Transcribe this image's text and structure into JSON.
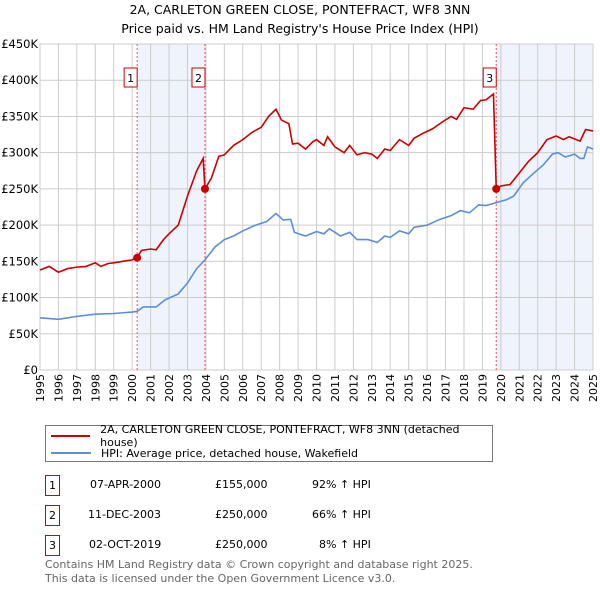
{
  "chart_data": {
    "type": "line",
    "title": "2A, CARLETON GREEN CLOSE, PONTEFRACT, WF8 3NN",
    "subtitle": "Price paid vs. HM Land Registry's House Price Index (HPI)",
    "xlim": [
      1995,
      2025
    ],
    "ylim": [
      0,
      450000
    ],
    "y_ticks": [
      {
        "v": 0,
        "label": "£0"
      },
      {
        "v": 50000,
        "label": "£50K"
      },
      {
        "v": 100000,
        "label": "£100K"
      },
      {
        "v": 150000,
        "label": "£150K"
      },
      {
        "v": 200000,
        "label": "£200K"
      },
      {
        "v": 250000,
        "label": "£250K"
      },
      {
        "v": 300000,
        "label": "£300K"
      },
      {
        "v": 350000,
        "label": "£350K"
      },
      {
        "v": 400000,
        "label": "£400K"
      },
      {
        "v": 450000,
        "label": "£450K"
      }
    ],
    "x_ticks": [
      "1995",
      "1996",
      "1997",
      "1998",
      "1999",
      "2000",
      "2001",
      "2002",
      "2003",
      "2004",
      "2005",
      "2006",
      "2007",
      "2008",
      "2009",
      "2010",
      "2011",
      "2012",
      "2013",
      "2014",
      "2015",
      "2016",
      "2017",
      "2018",
      "2019",
      "2020",
      "2021",
      "2022",
      "2023",
      "2024",
      "2025"
    ],
    "grid": true,
    "shaded_ranges": [
      [
        2000.27,
        2003.95
      ],
      [
        2019.75,
        2025
      ]
    ],
    "series": [
      {
        "name": "2A, CARLETON GREEN CLOSE, PONTEFRACT, WF8 3NN (detached house)",
        "color": "#cc0000",
        "x": [
          1995,
          1995.5,
          1996,
          1996.5,
          1997,
          1997.5,
          1998,
          1998.3,
          1998.7,
          1999,
          1999.5,
          2000,
          2000.27,
          2000.5,
          2001,
          2001.3,
          2001.7,
          2002,
          2002.5,
          2003,
          2003.5,
          2003.85,
          2003.95,
          2004.3,
          2004.7,
          2005,
          2005.5,
          2006,
          2006.5,
          2007,
          2007.4,
          2007.8,
          2008.1,
          2008.5,
          2008.7,
          2009,
          2009.4,
          2009.8,
          2010,
          2010.4,
          2010.6,
          2011,
          2011.5,
          2011.8,
          2012.2,
          2012.6,
          2013,
          2013.3,
          2013.7,
          2014,
          2014.5,
          2015,
          2015.3,
          2015.8,
          2016.3,
          2016.8,
          2017.3,
          2017.6,
          2018,
          2018.5,
          2018.9,
          2019.2,
          2019.6,
          2019.75,
          2020,
          2020.5,
          2021,
          2021.5,
          2022,
          2022.5,
          2023,
          2023.4,
          2023.7,
          2024.3,
          2024.6,
          2025
        ],
        "y": [
          138,
          143,
          135,
          140,
          142,
          143,
          148,
          143,
          147,
          148,
          150,
          152,
          155,
          165,
          167,
          166,
          180,
          188,
          200,
          240,
          275,
          292,
          250,
          265,
          295,
          297,
          310,
          318,
          328,
          335,
          350,
          360,
          345,
          340,
          312,
          313,
          305,
          315,
          318,
          310,
          322,
          308,
          300,
          310,
          297,
          300,
          298,
          292,
          305,
          303,
          318,
          310,
          320,
          327,
          333,
          342,
          350,
          346,
          362,
          360,
          372,
          373,
          381,
          250,
          254,
          256,
          272,
          288,
          300,
          318,
          323,
          318,
          322,
          316,
          332,
          330
        ]
      },
      {
        "name": "HPI: Average price, detached house, Wakefield",
        "color": "#5b8fd4",
        "x": [
          1995,
          1996,
          1997,
          1998,
          1999,
          2000,
          2000.27,
          2000.6,
          2001.3,
          2001.8,
          2002.5,
          2003,
          2003.5,
          2003.95,
          2004.5,
          2005,
          2005.5,
          2006,
          2006.7,
          2007.3,
          2007.8,
          2008.2,
          2008.6,
          2008.8,
          2009.4,
          2010,
          2010.4,
          2010.7,
          2011.3,
          2011.8,
          2012.2,
          2012.8,
          2013.3,
          2013.7,
          2014,
          2014.5,
          2015,
          2015.3,
          2016,
          2016.7,
          2017.3,
          2017.8,
          2018.3,
          2018.8,
          2019.2,
          2019.75,
          2020.3,
          2020.7,
          2021.2,
          2021.8,
          2022.3,
          2022.8,
          2023.1,
          2023.5,
          2024,
          2024.3,
          2024.5,
          2024.7,
          2025
        ],
        "y": [
          72,
          70,
          74,
          77,
          78,
          80,
          81,
          87,
          87,
          97,
          105,
          120,
          140,
          152,
          170,
          180,
          185,
          192,
          200,
          205,
          216,
          207,
          208,
          190,
          185,
          191,
          188,
          195,
          185,
          190,
          180,
          180,
          176,
          185,
          183,
          192,
          188,
          197,
          200,
          208,
          213,
          220,
          217,
          228,
          227,
          231,
          235,
          240,
          258,
          272,
          283,
          298,
          300,
          294,
          298,
          292,
          292,
          308,
          305
        ]
      }
    ],
    "y_unit": "thousands GBP",
    "sales": [
      {
        "label": "1",
        "x": 2000.27,
        "price": 155
      },
      {
        "label": "2",
        "x": 2003.95,
        "price": 250
      },
      {
        "label": "3",
        "x": 2019.75,
        "price": 250
      }
    ]
  },
  "legend": {
    "items": [
      {
        "label": "2A, CARLETON GREEN CLOSE, PONTEFRACT, WF8 3NN (detached house)",
        "color": "#cc0000"
      },
      {
        "label": "HPI: Average price, detached house, Wakefield",
        "color": "#5b8fd4"
      }
    ]
  },
  "table": [
    {
      "num": "1",
      "date": "07-APR-2000",
      "price": "£155,000",
      "hpi": "92% ↑ HPI"
    },
    {
      "num": "2",
      "date": "11-DEC-2003",
      "price": "£250,000",
      "hpi": "66% ↑ HPI"
    },
    {
      "num": "3",
      "date": "02-OCT-2019",
      "price": "£250,000",
      "hpi": "8% ↑ HPI"
    }
  ],
  "footer": {
    "line1": "Contains HM Land Registry data © Crown copyright and database right 2025.",
    "line2": "This data is licensed under the Open Government Licence v3.0."
  }
}
